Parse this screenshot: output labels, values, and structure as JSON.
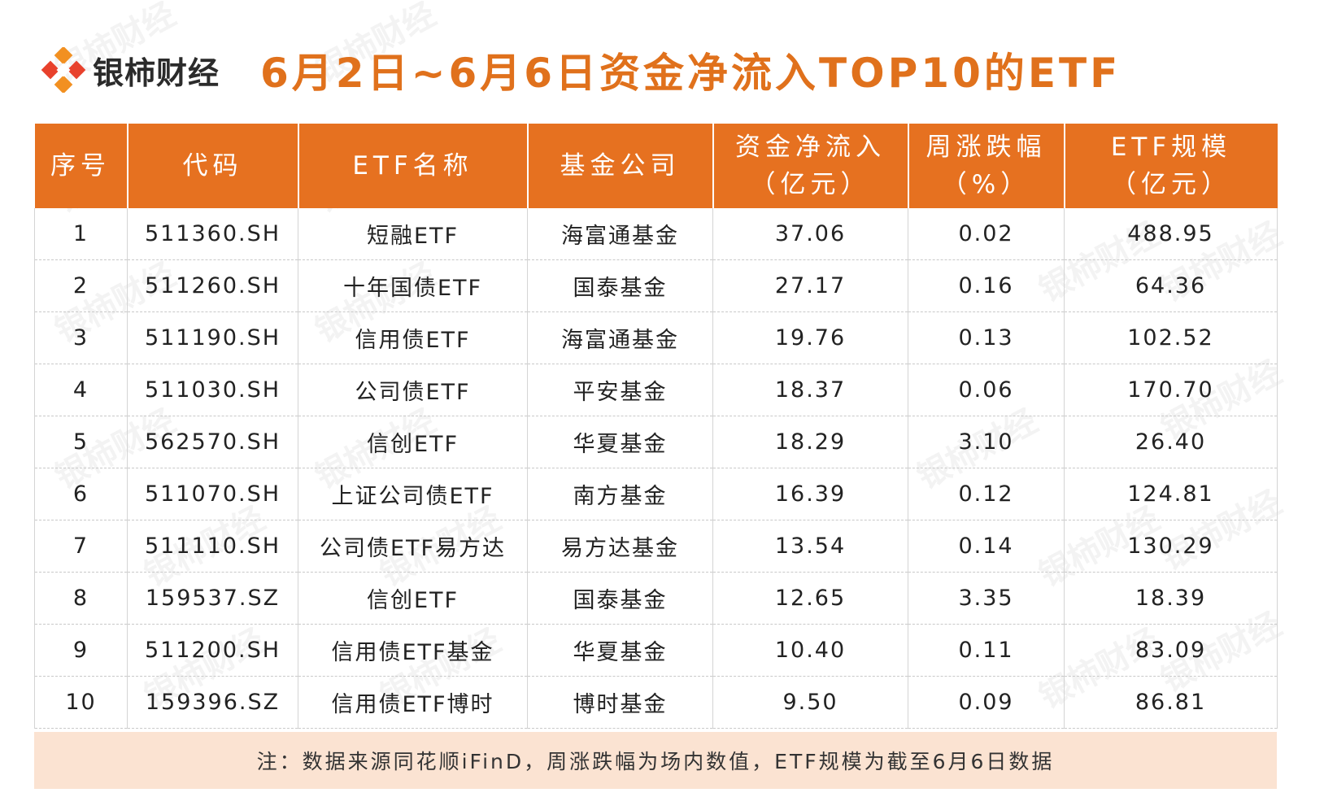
{
  "brand": {
    "name": "银柿财经",
    "colors": {
      "accent": "#e67120",
      "logo_red": "#e8412c",
      "logo_orange": "#f29021",
      "footnote_bg": "#fbe3d2"
    }
  },
  "title": "6月2日~6月6日资金净流入TOP10的ETF",
  "table": {
    "headers": [
      "序号",
      "代码",
      "ETF名称",
      "基金公司",
      "资金净流入\n（亿元）",
      "周涨跌幅\n（%）",
      "ETF规模\n（亿元）"
    ],
    "rows": [
      [
        "1",
        "511360.SH",
        "短融ETF",
        "海富通基金",
        "37.06",
        "0.02",
        "488.95"
      ],
      [
        "2",
        "511260.SH",
        "十年国债ETF",
        "国泰基金",
        "27.17",
        "0.16",
        "64.36"
      ],
      [
        "3",
        "511190.SH",
        "信用债ETF",
        "海富通基金",
        "19.76",
        "0.13",
        "102.52"
      ],
      [
        "4",
        "511030.SH",
        "公司债ETF",
        "平安基金",
        "18.37",
        "0.06",
        "170.70"
      ],
      [
        "5",
        "562570.SH",
        "信创ETF",
        "华夏基金",
        "18.29",
        "3.10",
        "26.40"
      ],
      [
        "6",
        "511070.SH",
        "上证公司债ETF",
        "南方基金",
        "16.39",
        "0.12",
        "124.81"
      ],
      [
        "7",
        "511110.SH",
        "公司债ETF易方达",
        "易方达基金",
        "13.54",
        "0.14",
        "130.29"
      ],
      [
        "8",
        "159537.SZ",
        "信创ETF",
        "国泰基金",
        "12.65",
        "3.35",
        "18.39"
      ],
      [
        "9",
        "511200.SH",
        "信用债ETF基金",
        "华夏基金",
        "10.40",
        "0.11",
        "83.09"
      ],
      [
        "10",
        "159396.SZ",
        "信用债ETF博时",
        "博时基金",
        "9.50",
        "0.09",
        "86.81"
      ]
    ]
  },
  "footnote": "注：数据来源同花顺iFinD，周涨跌幅为场内数值，ETF规模为截至6月6日数据",
  "watermark_text": "银柿财经"
}
